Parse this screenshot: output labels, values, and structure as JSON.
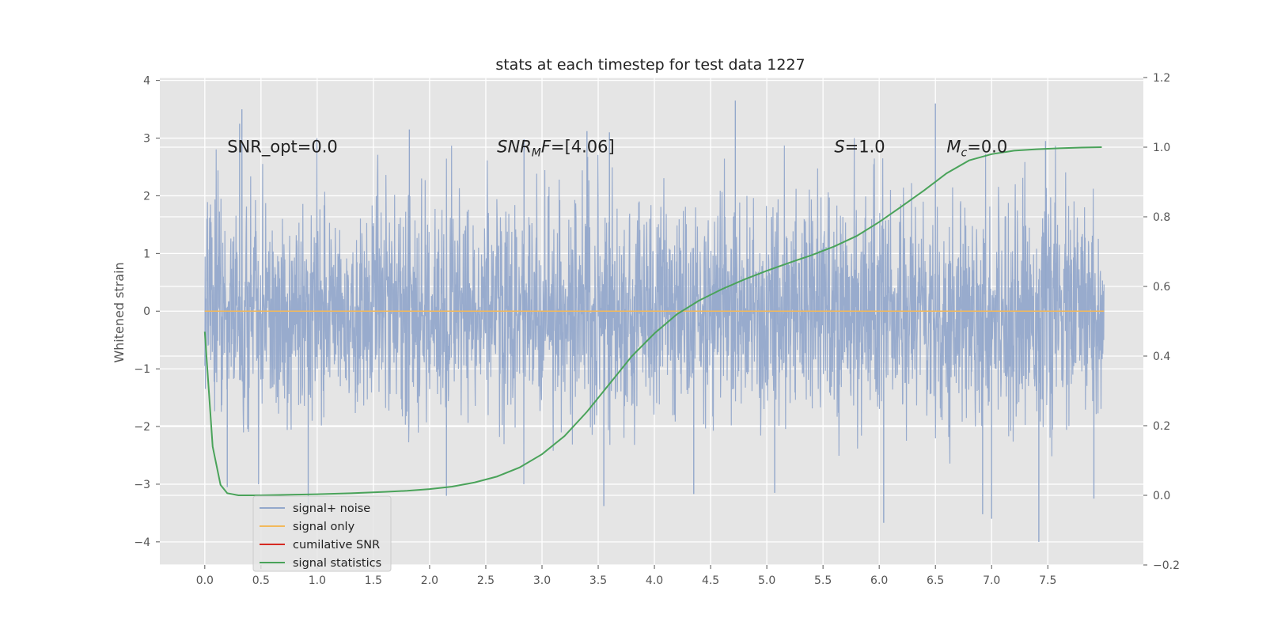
{
  "chart_data": {
    "type": "line",
    "title": "stats at each timestep for test data 1227",
    "xlabel": "",
    "ylabel": "Whitened strain",
    "xlim": [
      -0.4,
      8.35
    ],
    "ylim": [
      -4.4,
      4.05
    ],
    "y2lim": [
      -0.2,
      1.2
    ],
    "x_ticks": [
      "0.0",
      "0.5",
      "1.0",
      "1.5",
      "2.0",
      "2.5",
      "3.0",
      "3.5",
      "4.0",
      "4.5",
      "5.0",
      "5.5",
      "6.0",
      "6.5",
      "7.0",
      "7.5"
    ],
    "y_ticks": [
      "4",
      "3",
      "2",
      "1",
      "0",
      "−1",
      "−2",
      "−3",
      "−4"
    ],
    "y2_ticks": [
      "1.2",
      "1.0",
      "0.8",
      "0.6",
      "0.4",
      "0.2",
      "0.0",
      "−0.2"
    ],
    "grid": true,
    "legend_position": "lower-left",
    "annotations": [
      {
        "plain": "SNR_opt=0.0",
        "x": 0.2,
        "y": 2.85
      },
      {
        "italic": "SNR",
        "sub": "M",
        "italic2": "F",
        "rest": "=[4.06]",
        "x": 2.6,
        "y": 2.85
      },
      {
        "italic": "S",
        "rest": "=1.0",
        "x": 5.6,
        "y": 2.85
      },
      {
        "italic": "M",
        "sub": "c",
        "rest": "=0.0",
        "x": 6.6,
        "y": 2.85
      }
    ],
    "series": [
      {
        "name": "signal+ noise",
        "color": "#93a8cb",
        "kind": "noise",
        "x_range": [
          0.0,
          8.0
        ],
        "std": 1.0,
        "spikes": [
          {
            "x": 0.33,
            "y": 3.5
          },
          {
            "x": 0.31,
            "y": 3.25
          },
          {
            "x": 1.82,
            "y": 3.15
          },
          {
            "x": 2.84,
            "y": 2.98
          },
          {
            "x": 3.4,
            "y": 3.12
          },
          {
            "x": 3.6,
            "y": 3.1
          },
          {
            "x": 4.72,
            "y": 3.65
          },
          {
            "x": 6.5,
            "y": 3.6
          },
          {
            "x": 7.48,
            "y": 2.95
          },
          {
            "x": 3.55,
            "y": -3.38
          },
          {
            "x": 4.35,
            "y": -3.17
          },
          {
            "x": 5.07,
            "y": -3.15
          },
          {
            "x": 6.04,
            "y": -3.67
          },
          {
            "x": 6.92,
            "y": -3.52
          },
          {
            "x": 7.0,
            "y": -3.6
          },
          {
            "x": 7.42,
            "y": -4.0
          },
          {
            "x": 7.91,
            "y": -3.25
          },
          {
            "x": 2.15,
            "y": -3.2
          },
          {
            "x": 0.92,
            "y": -3.35
          },
          {
            "x": 0.2,
            "y": -3.05
          }
        ]
      },
      {
        "name": "signal only",
        "color": "#f2b95b",
        "x": [
          0.0,
          8.0
        ],
        "y": [
          0.0,
          0.0
        ]
      },
      {
        "name": "cumilative SNR",
        "color": "#d62a22",
        "x": [],
        "y": []
      },
      {
        "name": "signal statistics",
        "color": "#4aa35a",
        "axis": "right",
        "x": [
          0.0,
          0.07,
          0.14,
          0.2,
          0.3,
          0.5,
          0.8,
          1.0,
          1.3,
          1.6,
          1.8,
          2.0,
          2.2,
          2.4,
          2.6,
          2.8,
          3.0,
          3.2,
          3.4,
          3.6,
          3.8,
          4.0,
          4.2,
          4.4,
          4.6,
          4.8,
          5.0,
          5.2,
          5.4,
          5.6,
          5.8,
          6.0,
          6.2,
          6.4,
          6.6,
          6.8,
          7.0,
          7.2,
          7.4,
          7.6,
          7.8,
          7.98
        ],
        "y": [
          0.47,
          0.14,
          0.03,
          0.006,
          0.0,
          0.0,
          0.002,
          0.003,
          0.006,
          0.01,
          0.013,
          0.018,
          0.025,
          0.037,
          0.054,
          0.08,
          0.118,
          0.17,
          0.24,
          0.32,
          0.4,
          0.465,
          0.52,
          0.56,
          0.592,
          0.62,
          0.645,
          0.668,
          0.69,
          0.715,
          0.745,
          0.785,
          0.83,
          0.876,
          0.925,
          0.962,
          0.98,
          0.99,
          0.994,
          0.997,
          0.999,
          1.0
        ]
      }
    ]
  }
}
